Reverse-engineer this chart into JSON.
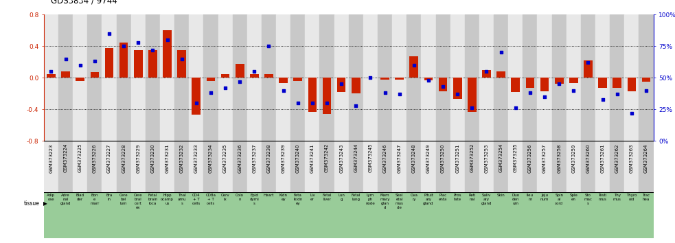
{
  "title": "GDS3834 / 9744",
  "gsm_labels": [
    "GSM373223",
    "GSM373224",
    "GSM373225",
    "GSM373226",
    "GSM373227",
    "GSM373228",
    "GSM373229",
    "GSM373230",
    "GSM373231",
    "GSM373232",
    "GSM373233",
    "GSM373234",
    "GSM373235",
    "GSM373236",
    "GSM373237",
    "GSM373238",
    "GSM373239",
    "GSM373240",
    "GSM373241",
    "GSM373242",
    "GSM373243",
    "GSM373244",
    "GSM373245",
    "GSM373246",
    "GSM373247",
    "GSM373248",
    "GSM373249",
    "GSM373250",
    "GSM373251",
    "GSM373252",
    "GSM373253",
    "GSM373254",
    "GSM373255",
    "GSM373256",
    "GSM373257",
    "GSM373258",
    "GSM373259",
    "GSM373260",
    "GSM373261",
    "GSM373262",
    "GSM373263",
    "GSM373264"
  ],
  "log10_ratio": [
    0.05,
    0.08,
    -0.04,
    0.07,
    0.38,
    0.45,
    0.35,
    0.35,
    0.6,
    0.35,
    -0.47,
    -0.04,
    0.05,
    0.18,
    0.05,
    0.05,
    -0.07,
    -0.04,
    -0.43,
    -0.46,
    -0.18,
    -0.2,
    0.0,
    -0.02,
    -0.02,
    0.27,
    -0.03,
    -0.17,
    -0.27,
    -0.43,
    0.1,
    0.08,
    -0.18,
    -0.13,
    -0.17,
    -0.08,
    -0.07,
    0.22,
    -0.13,
    -0.13,
    -0.17,
    -0.05
  ],
  "percentile": [
    55,
    65,
    60,
    63,
    85,
    75,
    78,
    72,
    80,
    65,
    30,
    38,
    42,
    47,
    55,
    75,
    40,
    30,
    30,
    30,
    45,
    28,
    50,
    38,
    37,
    60,
    48,
    43,
    37,
    26,
    55,
    70,
    26,
    38,
    35,
    45,
    40,
    62,
    33,
    37,
    22,
    40
  ],
  "tissue_short": [
    "Adip\nose",
    "Adre\nnal\ngland",
    "Blad\nder",
    "Bon\ne\nmarr",
    "Bra\nin",
    "Cere\nbel\nlum",
    "Cere\nbral\ncort\nex",
    "Fetal\nbrain\nloca",
    "Hipp\nocamp\nus",
    "Thal\namu\ns",
    "CD4\n+ T\ncells",
    "CD8a\n+ T\ncells",
    "Cerv\nix",
    "Colo\nn",
    "Epid\ndymi\ns",
    "Heart",
    "Kidn\ney",
    "Feta\nlkidn\ney",
    "Liv\ner",
    "Fetal\nliver",
    "Lun\ng",
    "Fetal\nlung",
    "Lym\nph\nnode",
    "Mam\nmary\nglan\nd",
    "Skel\netal\nmus\ncle",
    "Ova\nry",
    "Pituit\nary\ngland",
    "Plac\nenta",
    "Pros\ntate",
    "Reti\nnal",
    "Saliv\nary\ngland",
    "Skin",
    "Duo\nden\num",
    "Ileu\nm",
    "Jeju\nnum",
    "Spin\nal\ncord",
    "Sple\nen",
    "Sto\nmac\ns",
    "Testi\nmus",
    "Thy\nmus",
    "Thyro\noid",
    "Trac\nhea"
  ],
  "bar_color": "#cc2200",
  "dot_color": "#0000cc",
  "bg_color_light": "#e8e8e8",
  "bg_color_dark": "#c8c8c8",
  "tissue_bg_color": "#99cc99",
  "gsm_bg_sep_color": "#000000",
  "ylim_left": [
    -0.8,
    0.8
  ],
  "ylim_right": [
    0,
    100
  ],
  "yticks_left": [
    -0.8,
    -0.4,
    0.0,
    0.4,
    0.8
  ],
  "yticks_right": [
    0,
    25,
    50,
    75,
    100
  ],
  "ytick_labels_right": [
    "0%",
    "25%",
    "50%",
    "75%",
    "100%"
  ],
  "hlines": [
    -0.4,
    0.0,
    0.4
  ],
  "title_fontsize": 8.5,
  "axis_fontsize": 6.5,
  "tick_fontsize": 5.0,
  "tissue_fontsize": 4.0
}
